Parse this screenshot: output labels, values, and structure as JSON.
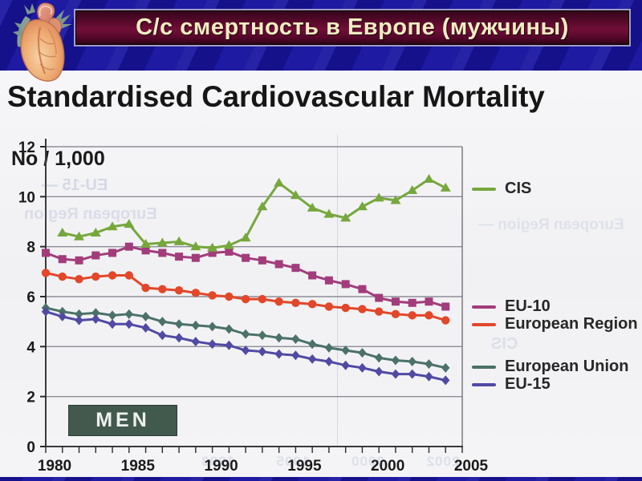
{
  "header": {
    "title": "С/с смертность в Европе (мужчины)"
  },
  "chart": {
    "title": "Standardised Cardiovascular Mortality",
    "y_unit_label": "No / 1,000",
    "annotation_box": "MEN"
  },
  "chart_data": {
    "type": "line",
    "title": "Standardised Cardiovascular Mortality",
    "xlabel": "",
    "ylabel": "No / 1,000",
    "xlim": [
      1980,
      2005
    ],
    "ylim": [
      0,
      12
    ],
    "x_ticks": [
      1980,
      1985,
      1990,
      1995,
      2000,
      2005
    ],
    "y_ticks": [
      0,
      2,
      4,
      6,
      8,
      10,
      12
    ],
    "grid": true,
    "legend_position": "right",
    "annotation": "MEN",
    "series": [
      {
        "name": "CIS",
        "color": "#76a73c",
        "marker": "triangle",
        "start_year": 1981,
        "values": [
          8.55,
          8.4,
          8.55,
          8.8,
          8.9,
          8.1,
          8.15,
          8.2,
          8.0,
          7.95,
          8.05,
          8.35,
          9.6,
          10.55,
          10.05,
          9.55,
          9.3,
          9.15,
          9.6,
          9.95,
          9.85,
          10.25,
          10.7,
          10.35
        ]
      },
      {
        "name": "EU-10",
        "color": "#a23c7b",
        "marker": "square",
        "start_year": 1980,
        "values": [
          7.75,
          7.5,
          7.45,
          7.65,
          7.75,
          8.0,
          7.85,
          7.75,
          7.6,
          7.55,
          7.75,
          7.8,
          7.55,
          7.45,
          7.3,
          7.15,
          6.85,
          6.65,
          6.5,
          6.3,
          5.95,
          5.8,
          5.75,
          5.8,
          5.6
        ]
      },
      {
        "name": "European Region",
        "color": "#e2472a",
        "marker": "circle",
        "start_year": 1980,
        "values": [
          6.95,
          6.8,
          6.7,
          6.8,
          6.85,
          6.85,
          6.35,
          6.3,
          6.25,
          6.15,
          6.05,
          6.0,
          5.9,
          5.9,
          5.8,
          5.75,
          5.7,
          5.6,
          5.55,
          5.5,
          5.4,
          5.3,
          5.25,
          5.25,
          5.05
        ]
      },
      {
        "name": "European Union",
        "color": "#4b7168",
        "marker": "diamond",
        "start_year": 1980,
        "values": [
          5.55,
          5.4,
          5.3,
          5.35,
          5.25,
          5.3,
          5.2,
          5.0,
          4.9,
          4.85,
          4.8,
          4.7,
          4.5,
          4.45,
          4.35,
          4.3,
          4.1,
          3.95,
          3.85,
          3.75,
          3.55,
          3.45,
          3.4,
          3.3,
          3.15
        ]
      },
      {
        "name": "EU-15",
        "color": "#514aa3",
        "marker": "diamond",
        "start_year": 1980,
        "values": [
          5.4,
          5.2,
          5.05,
          5.1,
          4.9,
          4.9,
          4.75,
          4.45,
          4.35,
          4.2,
          4.1,
          4.05,
          3.85,
          3.8,
          3.7,
          3.65,
          3.5,
          3.4,
          3.25,
          3.15,
          3.0,
          2.9,
          2.9,
          2.8,
          2.65
        ]
      }
    ]
  },
  "artifacts": {
    "bleed_through": {
      "g1": "EU-15 —",
      "g2": "European Region",
      "g3": "European Region —",
      "g4": "CIS",
      "g5": "2002   2000   1995   1993"
    }
  }
}
